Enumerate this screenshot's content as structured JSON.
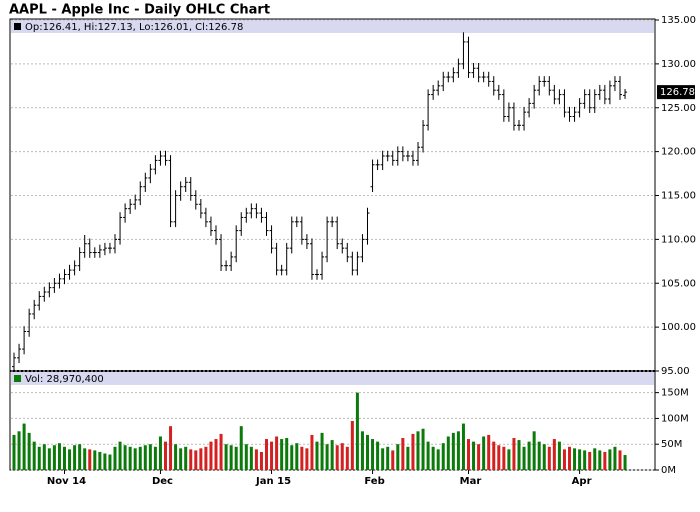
{
  "chart_data": {
    "type": "ohlc",
    "title": "AAPL - Apple Inc - Daily OHLC Chart",
    "ohlc_label": "Op:126.41, Hi:127.13, Lo:126.01, Cl:126.78",
    "color": "#000000",
    "categories": [
      null,
      null,
      null,
      null,
      null,
      null,
      null,
      null,
      null,
      null,
      "Nov 14",
      null,
      null,
      null,
      null,
      null,
      null,
      null,
      null,
      null,
      null,
      null,
      null,
      null,
      null,
      null,
      null,
      null,
      null,
      "Dec",
      null,
      null,
      null,
      null,
      null,
      null,
      null,
      null,
      null,
      null,
      null,
      null,
      null,
      null,
      null,
      null,
      null,
      null,
      null,
      null,
      null,
      "Jan 15",
      null,
      null,
      null,
      null,
      null,
      null,
      null,
      null,
      null,
      null,
      null,
      null,
      null,
      null,
      null,
      null,
      null,
      null,
      null,
      "Feb",
      null,
      null,
      null,
      null,
      null,
      null,
      null,
      null,
      null,
      null,
      null,
      null,
      null,
      null,
      null,
      null,
      null,
      null,
      "Mar",
      null,
      null,
      null,
      null,
      null,
      null,
      null,
      null,
      null,
      null,
      null,
      null,
      null,
      null,
      null,
      null,
      null,
      null,
      null,
      null,
      null,
      "Apr",
      null,
      null,
      null,
      null,
      null,
      null,
      null,
      null,
      null
    ],
    "open": [
      95.5,
      96.5,
      97.5,
      99.5,
      101.5,
      102.5,
      103.5,
      104,
      104.5,
      105,
      105.5,
      106,
      106.5,
      107,
      108.5,
      109.5,
      108.5,
      108.5,
      108.8,
      109,
      109,
      110,
      112.5,
      113.5,
      114,
      114.5,
      116,
      117,
      118,
      119,
      119.5,
      119,
      112,
      115,
      116,
      116.5,
      115,
      114,
      113,
      112,
      111,
      110,
      107,
      107,
      108,
      111,
      112.5,
      113,
      113.5,
      113,
      112.5,
      111,
      109,
      106.5,
      106.5,
      109,
      112,
      112,
      110,
      109.5,
      106,
      106,
      108,
      112,
      112,
      109.5,
      109,
      108,
      106.5,
      108,
      110,
      116,
      118.5,
      118.5,
      119.5,
      119.5,
      119,
      120,
      119.5,
      119.5,
      119,
      120.5,
      123,
      126.5,
      127,
      127.5,
      128.5,
      128.5,
      129,
      130,
      132.5,
      129,
      129.5,
      128.5,
      128.5,
      128,
      127,
      126.5,
      124,
      125,
      123,
      123,
      124.5,
      125.5,
      127,
      128,
      128,
      127,
      126,
      126.5,
      124.5,
      124,
      124.5,
      125.5,
      126.5,
      125,
      126.5,
      127,
      126,
      127.5,
      128,
      126.41
    ],
    "high": [
      97.1,
      98.1,
      100.1,
      102.1,
      103.1,
      104.1,
      104.6,
      105.1,
      105.6,
      106.1,
      106.6,
      107.1,
      107.6,
      109.1,
      110.5,
      110.1,
      109.1,
      109.4,
      109.6,
      109.6,
      110.6,
      113.1,
      114.1,
      114.6,
      115.1,
      116.6,
      117.6,
      118.6,
      119.6,
      120.1,
      120.1,
      119.6,
      115.6,
      116.6,
      117.1,
      117.1,
      115.6,
      114.6,
      113.6,
      112.6,
      111.6,
      110.6,
      107.6,
      108.6,
      111.6,
      113.1,
      113.6,
      114.1,
      114.1,
      113.6,
      113.1,
      111.6,
      109.6,
      107.1,
      109.6,
      112.6,
      112.6,
      112.6,
      110.6,
      110.1,
      106.6,
      108.6,
      112.6,
      112.6,
      112.6,
      110.1,
      109.6,
      108.6,
      108.6,
      110.6,
      113.6,
      119.1,
      119.1,
      120.1,
      120.1,
      120.1,
      120.6,
      120.6,
      120.1,
      120.1,
      121.1,
      123.6,
      127.1,
      127.6,
      128.1,
      129.1,
      129.1,
      129.6,
      130.6,
      133.6,
      133.1,
      130.1,
      130.1,
      129.1,
      129.1,
      128.6,
      127.6,
      127.1,
      125.6,
      125.6,
      123.6,
      125.1,
      126.1,
      127.6,
      128.6,
      128.6,
      128.6,
      127.6,
      127.1,
      127.1,
      125.1,
      125.1,
      126.1,
      127.1,
      127.1,
      127.1,
      127.6,
      127.6,
      128.1,
      128.6,
      128.6,
      127.13
    ],
    "low": [
      94.9,
      95.9,
      96.9,
      98.9,
      100.9,
      101.9,
      102.9,
      103.4,
      103.9,
      104.4,
      104.9,
      105.4,
      105.9,
      106.4,
      107.9,
      107.9,
      107.9,
      107.9,
      108.2,
      108.4,
      108.4,
      109.4,
      111.9,
      112.9,
      113.4,
      113.9,
      115.4,
      116.4,
      117.4,
      118.4,
      118.4,
      111.4,
      111.4,
      114.4,
      115.4,
      114.4,
      113.4,
      112.4,
      111.4,
      110.4,
      109.4,
      106.4,
      106.4,
      106.4,
      107.4,
      110.4,
      111.9,
      112.4,
      112.4,
      111.9,
      110.4,
      108.4,
      105.9,
      105.9,
      105.9,
      108.4,
      111.4,
      109.4,
      108.9,
      105.4,
      105.4,
      105.4,
      107.4,
      111.4,
      108.9,
      108.4,
      107.4,
      105.9,
      105.9,
      107.4,
      109.4,
      115.4,
      117.9,
      117.9,
      118.9,
      118.4,
      118.4,
      118.9,
      118.9,
      118.4,
      118.4,
      119.9,
      122.4,
      125.9,
      126.4,
      126.9,
      127.9,
      127.9,
      128.4,
      129.4,
      128.4,
      128.4,
      127.9,
      127.9,
      127.4,
      126.4,
      125.9,
      123.4,
      123.4,
      122.4,
      122.4,
      122.4,
      123.9,
      124.9,
      126.4,
      127.4,
      126.4,
      125.4,
      125.4,
      123.9,
      123.4,
      123.4,
      123.9,
      124.9,
      124.4,
      124.4,
      125.9,
      125.4,
      125.4,
      126.9,
      125.9,
      126.01
    ],
    "close": [
      96.5,
      97.5,
      99.5,
      101.5,
      102.5,
      103.5,
      104,
      104.5,
      105,
      105.5,
      106,
      106.5,
      107,
      108.5,
      109.5,
      108.5,
      108.5,
      108.8,
      109,
      109,
      110,
      112.5,
      113.5,
      114,
      114.5,
      116,
      117,
      118,
      119,
      119.5,
      119,
      112,
      115,
      116,
      116.5,
      115,
      114,
      113,
      112,
      111,
      110,
      107,
      107,
      108,
      111,
      112.5,
      113,
      113.5,
      113,
      112.5,
      111,
      109,
      106.5,
      106.5,
      109,
      112,
      112,
      110,
      109.5,
      106,
      106,
      108,
      112,
      112,
      109.5,
      109,
      108,
      106.5,
      108,
      110,
      113,
      118.5,
      118.5,
      119.5,
      119.5,
      119,
      120,
      119.5,
      119.5,
      119,
      120.5,
      123,
      126.5,
      127,
      127.5,
      128.5,
      128.5,
      129,
      130,
      132.5,
      129,
      129.5,
      128.5,
      128.5,
      128,
      127,
      126.5,
      124,
      125,
      123,
      123,
      124.5,
      125.5,
      127,
      128,
      128,
      127,
      126,
      126.5,
      124.5,
      124,
      124.5,
      125.5,
      126.5,
      125,
      126.5,
      127,
      126,
      127.5,
      128,
      126.5,
      126.78
    ],
    "ylim": [
      95,
      135
    ],
    "yticks": [
      {
        "value": 95,
        "label": "95.00"
      },
      {
        "value": 100,
        "label": "100.00"
      },
      {
        "value": 105,
        "label": "105.00"
      },
      {
        "value": 110,
        "label": "110.00"
      },
      {
        "value": 115,
        "label": "115.00"
      },
      {
        "value": 120,
        "label": "120.00"
      },
      {
        "value": 125,
        "label": "125.00"
      },
      {
        "value": 130,
        "label": "130.00"
      },
      {
        "value": 135,
        "label": "135.00"
      }
    ],
    "grid": true,
    "volume": {
      "label": "Vol: 28,970,400",
      "up_color": "#0b7a0b",
      "down_color": "#d42020",
      "values": [
        68000000,
        75000000,
        90000000,
        72000000,
        55000000,
        45000000,
        50000000,
        42000000,
        48000000,
        52000000,
        45000000,
        40000000,
        48000000,
        50000000,
        42000000,
        40000000,
        38000000,
        35000000,
        32000000,
        30000000,
        45000000,
        55000000,
        48000000,
        45000000,
        42000000,
        45000000,
        48000000,
        50000000,
        45000000,
        65000000,
        55000000,
        85000000,
        50000000,
        42000000,
        45000000,
        40000000,
        38000000,
        42000000,
        45000000,
        55000000,
        60000000,
        70000000,
        50000000,
        48000000,
        45000000,
        85000000,
        50000000,
        45000000,
        40000000,
        35000000,
        60000000,
        55000000,
        65000000,
        60000000,
        62000000,
        48000000,
        52000000,
        45000000,
        42000000,
        68000000,
        55000000,
        72000000,
        50000000,
        58000000,
        48000000,
        52000000,
        45000000,
        95000000,
        150000000,
        75000000,
        68000000,
        60000000,
        55000000,
        42000000,
        45000000,
        38000000,
        50000000,
        62000000,
        45000000,
        70000000,
        75000000,
        80000000,
        55000000,
        45000000,
        40000000,
        52000000,
        65000000,
        72000000,
        75000000,
        90000000,
        60000000,
        55000000,
        50000000,
        65000000,
        68000000,
        55000000,
        48000000,
        45000000,
        40000000,
        62000000,
        58000000,
        45000000,
        55000000,
        75000000,
        55000000,
        50000000,
        45000000,
        60000000,
        55000000,
        40000000,
        45000000,
        42000000,
        40000000,
        38000000,
        35000000,
        42000000,
        38000000,
        35000000,
        40000000,
        45000000,
        38000000,
        28970400
      ],
      "ylim": [
        0,
        190000000
      ],
      "yticks": [
        {
          "value": 0,
          "label": "0M"
        },
        {
          "value": 50000000,
          "label": "50M"
        },
        {
          "value": 100000000,
          "label": "100M"
        },
        {
          "value": 150000000,
          "label": "150M"
        }
      ]
    }
  }
}
